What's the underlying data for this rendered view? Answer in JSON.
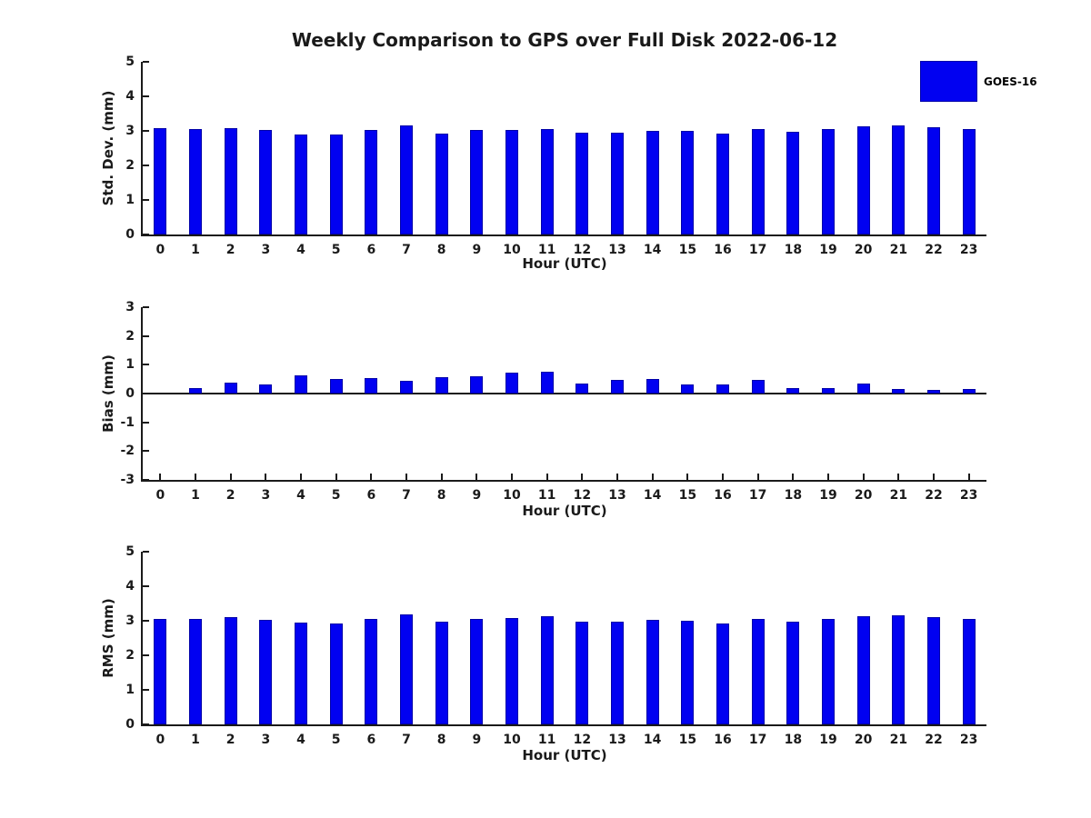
{
  "title": "Weekly Comparison to GPS over Full Disk 2022-06-12",
  "legend": {
    "label": "GOES-16",
    "color": "#0101f1"
  },
  "colors": {
    "bar": "#0101f1",
    "bar_edge": "#0000a8",
    "axis": "#1a1a1a",
    "text": "#1a1a1a"
  },
  "chart_data": [
    {
      "type": "bar",
      "name": "std-dev",
      "ylabel": "Std. Dev. (mm)",
      "xlabel": "Hour (UTC)",
      "series_name": "GOES-16",
      "categories": [
        "0",
        "1",
        "2",
        "3",
        "4",
        "5",
        "6",
        "7",
        "8",
        "9",
        "10",
        "11",
        "12",
        "13",
        "14",
        "15",
        "16",
        "17",
        "18",
        "19",
        "20",
        "21",
        "22",
        "23"
      ],
      "values": [
        3.08,
        3.04,
        3.09,
        3.02,
        2.89,
        2.89,
        3.02,
        3.17,
        2.92,
        3.02,
        3.03,
        3.06,
        2.96,
        2.94,
        3.01,
        2.99,
        2.91,
        3.04,
        2.97,
        3.05,
        3.14,
        3.17,
        3.11,
        3.05
      ],
      "ylim": [
        0,
        5
      ],
      "yticks": [
        0,
        1,
        2,
        3,
        4,
        5
      ],
      "grid": false,
      "legend_position": "top-right"
    },
    {
      "type": "bar",
      "name": "bias",
      "ylabel": "Bias (mm)",
      "xlabel": "Hour (UTC)",
      "series_name": "GOES-16",
      "categories": [
        "0",
        "1",
        "2",
        "3",
        "4",
        "5",
        "6",
        "7",
        "8",
        "9",
        "10",
        "11",
        "12",
        "13",
        "14",
        "15",
        "16",
        "17",
        "18",
        "19",
        "20",
        "21",
        "22",
        "23"
      ],
      "values": [
        0.0,
        0.18,
        0.38,
        0.33,
        0.63,
        0.51,
        0.54,
        0.45,
        0.57,
        0.6,
        0.72,
        0.75,
        0.35,
        0.46,
        0.52,
        0.31,
        0.33,
        0.46,
        0.2,
        0.2,
        0.34,
        0.17,
        0.13,
        0.16
      ],
      "ylim": [
        -3,
        3
      ],
      "yticks": [
        -3,
        -2,
        -1,
        0,
        1,
        2,
        3
      ],
      "grid": false,
      "legend_position": "none"
    },
    {
      "type": "bar",
      "name": "rms",
      "ylabel": "RMS (mm)",
      "xlabel": "Hour (UTC)",
      "series_name": "GOES-16",
      "categories": [
        "0",
        "1",
        "2",
        "3",
        "4",
        "5",
        "6",
        "7",
        "8",
        "9",
        "10",
        "11",
        "12",
        "13",
        "14",
        "15",
        "16",
        "17",
        "18",
        "19",
        "20",
        "21",
        "22",
        "23"
      ],
      "values": [
        3.06,
        3.05,
        3.1,
        3.03,
        2.95,
        2.93,
        3.06,
        3.18,
        2.97,
        3.06,
        3.09,
        3.14,
        2.98,
        2.98,
        3.03,
        3.01,
        2.93,
        3.06,
        2.98,
        3.04,
        3.14,
        3.17,
        3.11,
        3.04
      ],
      "ylim": [
        0,
        5
      ],
      "yticks": [
        0,
        1,
        2,
        3,
        4,
        5
      ],
      "grid": false,
      "legend_position": "none"
    }
  ]
}
